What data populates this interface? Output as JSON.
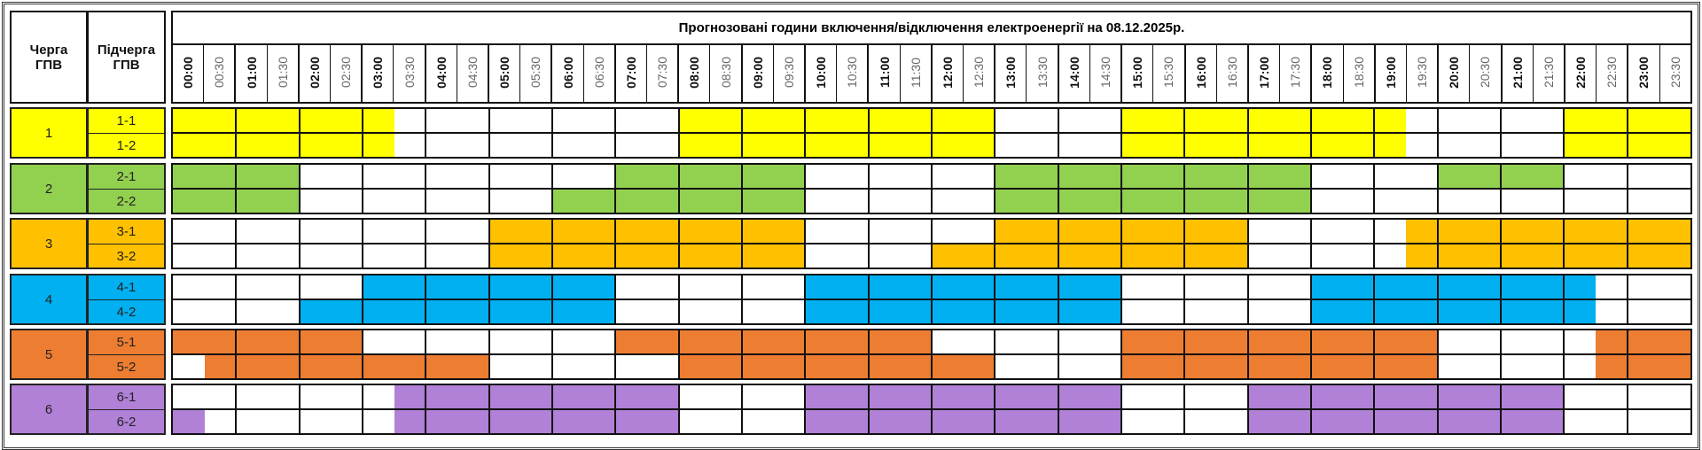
{
  "header": {
    "queue_label": "Черга\nГПВ",
    "subqueue_label": "Підчерга\nГПВ",
    "title": "Прогнозовані години включення/відключення електроенергії на 08.12.2025р."
  },
  "time_labels": [
    "00:00",
    "00:30",
    "01:00",
    "01:30",
    "02:00",
    "02:30",
    "03:00",
    "03:30",
    "04:00",
    "04:30",
    "05:00",
    "05:30",
    "06:00",
    "06:30",
    "07:00",
    "07:30",
    "08:00",
    "08:30",
    "09:00",
    "09:30",
    "10:00",
    "10:30",
    "11:00",
    "11:30",
    "12:00",
    "12:30",
    "13:00",
    "13:30",
    "14:00",
    "14:30",
    "15:00",
    "15:30",
    "16:00",
    "16:30",
    "17:00",
    "17:30",
    "18:00",
    "18:30",
    "19:00",
    "19:30",
    "20:00",
    "20:30",
    "21:00",
    "21:30",
    "22:00",
    "22:30",
    "23:00",
    "23:30"
  ],
  "groups": [
    {
      "label": "1",
      "color": "#FFFF00",
      "subgroups": [
        {
          "label": "1-1",
          "highlighted_hours": [
            [
              0,
              3.5
            ],
            [
              8,
              13
            ],
            [
              15,
              19.5
            ],
            [
              22,
              24
            ]
          ]
        },
        {
          "label": "1-2",
          "highlighted_hours": [
            [
              0,
              3.5
            ],
            [
              8,
              13
            ],
            [
              15,
              19.5
            ],
            [
              22,
              24
            ]
          ]
        }
      ]
    },
    {
      "label": "2",
      "color": "#92D050",
      "subgroups": [
        {
          "label": "2-1",
          "highlighted_hours": [
            [
              0,
              2
            ],
            [
              7,
              10
            ],
            [
              13,
              18
            ],
            [
              20,
              22
            ]
          ]
        },
        {
          "label": "2-2",
          "highlighted_hours": [
            [
              0,
              2
            ],
            [
              6,
              10
            ],
            [
              13,
              18
            ]
          ]
        }
      ]
    },
    {
      "label": "3",
      "color": "#FFC000",
      "subgroups": [
        {
          "label": "3-1",
          "highlighted_hours": [
            [
              5,
              10
            ],
            [
              13,
              17
            ],
            [
              19.5,
              24
            ]
          ]
        },
        {
          "label": "3-2",
          "highlighted_hours": [
            [
              5,
              10
            ],
            [
              12,
              17
            ],
            [
              19.5,
              24
            ]
          ]
        }
      ]
    },
    {
      "label": "4",
      "color": "#00B0F0",
      "subgroups": [
        {
          "label": "4-1",
          "highlighted_hours": [
            [
              3,
              7
            ],
            [
              10,
              15
            ],
            [
              18,
              22.5
            ]
          ]
        },
        {
          "label": "4-2",
          "highlighted_hours": [
            [
              2,
              7
            ],
            [
              10,
              15
            ],
            [
              18,
              22.5
            ]
          ]
        }
      ]
    },
    {
      "label": "5",
      "color": "#ED7D31",
      "subgroups": [
        {
          "label": "5-1",
          "highlighted_hours": [
            [
              0,
              3
            ],
            [
              7,
              12
            ],
            [
              15,
              20
            ],
            [
              22.5,
              24
            ]
          ]
        },
        {
          "label": "5-2",
          "highlighted_hours": [
            [
              0.5,
              5
            ],
            [
              8,
              13
            ],
            [
              15,
              20
            ],
            [
              22.5,
              24
            ]
          ]
        }
      ]
    },
    {
      "label": "6",
      "color": "#B180D7",
      "subgroups": [
        {
          "label": "6-1",
          "highlighted_hours": [
            [
              3.5,
              8
            ],
            [
              10,
              15
            ],
            [
              17,
              22
            ]
          ]
        },
        {
          "label": "6-2",
          "highlighted_hours": [
            [
              0,
              0.5
            ],
            [
              3.5,
              8
            ],
            [
              10,
              15
            ],
            [
              17,
              22
            ]
          ]
        }
      ]
    }
  ]
}
